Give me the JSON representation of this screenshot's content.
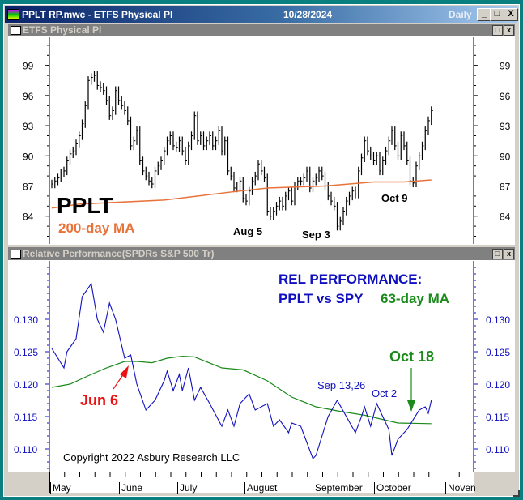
{
  "window": {
    "title": "PPLT RP.mwc - ETFS Physical Pl",
    "date": "10/28/2024",
    "period": "Daily",
    "minimize": "_",
    "maximize": "□",
    "close": "X"
  },
  "panel_top": {
    "title": "ETFS Physical Pl",
    "restore": "□",
    "close": "x"
  },
  "panel_bottom": {
    "title": "Relative Performance(SPDRs S&P 500 Tr)",
    "restore": "□",
    "close": "x"
  },
  "colors": {
    "price": "#000000",
    "ma200": "#e8733a",
    "rel": "#1010c0",
    "ma63": "#1a8a1a",
    "jun6": "#ee1111",
    "oct18": "#1a8a1a"
  },
  "annotations": {
    "ticker": "PPLT",
    "ma200_label": "200-day MA",
    "aug5": "Aug 5",
    "sep3": "Sep 3",
    "oct9": "Oct 9",
    "rel_title1": "REL PERFORMANCE:",
    "rel_title2": "PPLT vs SPY",
    "ma63_label": "63-day MA",
    "oct18": "Oct 18",
    "jun6": "Jun 6",
    "sep1326": "Sep 13,26",
    "oct2": "Oct 2",
    "copyright": "Copyright 2022 Asbury Research LLC"
  },
  "x_axis": {
    "months": [
      "May",
      "June",
      "July",
      "August",
      "September",
      "October",
      "Noven"
    ]
  },
  "chart_data": [
    {
      "type": "bar",
      "title": "ETFS Physical Pl (PPLT) daily",
      "yticks": [
        "99",
        "96",
        "93",
        "90",
        "87",
        "84"
      ],
      "ylim": [
        81.5,
        102
      ],
      "typical_range": 1.4,
      "closes": [
        87.2,
        87.5,
        87.8,
        88.3,
        88.5,
        89.5,
        90.2,
        90.5,
        91.2,
        92.0,
        93.2,
        95.0,
        97.5,
        97.8,
        98.0,
        97.0,
        96.8,
        96.5,
        95.5,
        94.0,
        94.5,
        96.5,
        95.5,
        95.0,
        94.5,
        93.5,
        91.0,
        91.5,
        92.5,
        89.5,
        88.5,
        88.0,
        87.5,
        87.2,
        88.5,
        89.0,
        89.5,
        90.5,
        91.5,
        92.0,
        91.0,
        90.8,
        91.5,
        90.5,
        89.5,
        91.0,
        92.0,
        94.0,
        91.5,
        92.0,
        91.0,
        91.5,
        92.0,
        91.0,
        91.5,
        92.5,
        90.5,
        91.5,
        88.5,
        88.0,
        86.8,
        87.0,
        87.5,
        85.8,
        85.5,
        86.5,
        87.5,
        88.0,
        89.2,
        88.5,
        87.8,
        84.5,
        84.0,
        84.5,
        85.0,
        85.5,
        85.0,
        86.0,
        86.5,
        85.5,
        87.0,
        87.5,
        87.5,
        87.8,
        88.5,
        86.8,
        87.5,
        87.8,
        88.5,
        88.0,
        87.0,
        86.0,
        85.5,
        85.0,
        83.0,
        83.5,
        84.5,
        85.5,
        86.0,
        86.5,
        86.2,
        88.5,
        89.8,
        91.5,
        90.5,
        90.0,
        89.5,
        90.0,
        88.5,
        89.5,
        90.5,
        91.5,
        92.5,
        91.0,
        90.0,
        92.0,
        91.0,
        89.5,
        87.5,
        87.3,
        89.0,
        90.0,
        91.0,
        92.5,
        93.5,
        94.5
      ],
      "ma200": {
        "name": "200-day MA",
        "points": [
          [
            0,
            84.8
          ],
          [
            9,
            85.2
          ],
          [
            37,
            85.6
          ],
          [
            59,
            86.4
          ],
          [
            71,
            86.8
          ],
          [
            90,
            87.0
          ],
          [
            106,
            87.4
          ],
          [
            116,
            87.4
          ],
          [
            125,
            87.6
          ]
        ]
      }
    },
    {
      "type": "line",
      "title": "Relative Performance PPLT vs SPY",
      "yticks": [
        "0.130",
        "0.125",
        "0.120",
        "0.115",
        "0.110"
      ],
      "ylim": [
        0.1065,
        0.1385
      ],
      "series": [
        {
          "name": "Relative Performance",
          "points": [
            [
              0,
              0.1255
            ],
            [
              4,
              0.1225
            ],
            [
              5,
              0.125
            ],
            [
              8,
              0.127
            ],
            [
              10,
              0.1335
            ],
            [
              13,
              0.1355
            ],
            [
              15,
              0.13
            ],
            [
              17,
              0.128
            ],
            [
              19,
              0.1325
            ],
            [
              21,
              0.13
            ],
            [
              24,
              0.124
            ],
            [
              26,
              0.1245
            ],
            [
              28,
              0.12
            ],
            [
              31,
              0.116
            ],
            [
              34,
              0.1175
            ],
            [
              37,
              0.1205
            ],
            [
              38,
              0.122
            ],
            [
              40,
              0.119
            ],
            [
              42,
              0.1215
            ],
            [
              43,
              0.119
            ],
            [
              45,
              0.1225
            ],
            [
              47,
              0.1175
            ],
            [
              49,
              0.1195
            ],
            [
              52,
              0.117
            ],
            [
              56,
              0.1135
            ],
            [
              58,
              0.116
            ],
            [
              60,
              0.1135
            ],
            [
              62,
              0.117
            ],
            [
              65,
              0.1185
            ],
            [
              67,
              0.116
            ],
            [
              71,
              0.117
            ],
            [
              73,
              0.1135
            ],
            [
              75,
              0.1145
            ],
            [
              78,
              0.1125
            ],
            [
              79,
              0.114
            ],
            [
              82,
              0.1135
            ],
            [
              84,
              0.111
            ],
            [
              86,
              0.1085
            ],
            [
              87,
              0.109
            ],
            [
              90,
              0.1135
            ],
            [
              91,
              0.115
            ],
            [
              94,
              0.1175
            ],
            [
              97,
              0.115
            ],
            [
              100,
              0.1125
            ],
            [
              102,
              0.115
            ],
            [
              103,
              0.1165
            ],
            [
              105,
              0.1135
            ],
            [
              107,
              0.117
            ],
            [
              111,
              0.113
            ],
            [
              112,
              0.109
            ],
            [
              114,
              0.1115
            ],
            [
              117,
              0.113
            ],
            [
              119,
              0.1145
            ],
            [
              121,
              0.116
            ],
            [
              123,
              0.1165
            ],
            [
              124,
              0.1155
            ],
            [
              125,
              0.1175
            ]
          ]
        },
        {
          "name": "63-day MA",
          "points": [
            [
              0,
              0.1195
            ],
            [
              6,
              0.12
            ],
            [
              13,
              0.1215
            ],
            [
              18,
              0.1225
            ],
            [
              24,
              0.1235
            ],
            [
              28,
              0.1235
            ],
            [
              33,
              0.1233
            ],
            [
              38,
              0.124
            ],
            [
              43,
              0.1243
            ],
            [
              47,
              0.1242
            ],
            [
              56,
              0.1225
            ],
            [
              63,
              0.1222
            ],
            [
              71,
              0.1205
            ],
            [
              79,
              0.118
            ],
            [
              87,
              0.1165
            ],
            [
              95,
              0.1158
            ],
            [
              103,
              0.1152
            ],
            [
              114,
              0.114
            ],
            [
              125,
              0.1139
            ]
          ]
        }
      ]
    }
  ]
}
